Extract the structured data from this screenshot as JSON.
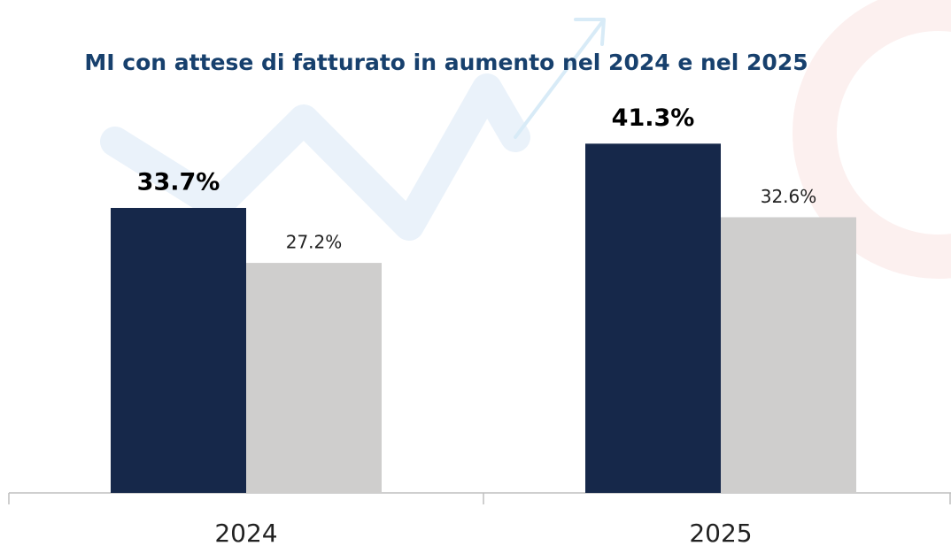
{
  "chart_data": {
    "type": "bar",
    "title": "MI con attese di fatturato in aumento nel 2024 e nel 2025",
    "categories": [
      "2024",
      "2025"
    ],
    "series": [
      {
        "color": "#16284a",
        "values": [
          33.7,
          41.3
        ],
        "value_labels": [
          "33.7%",
          "41.3%"
        ]
      },
      {
        "color": "#cfcecd",
        "values": [
          27.2,
          32.6
        ],
        "value_labels": [
          "27.2%",
          "32.6%"
        ]
      }
    ],
    "ylim": [
      0,
      45
    ]
  }
}
